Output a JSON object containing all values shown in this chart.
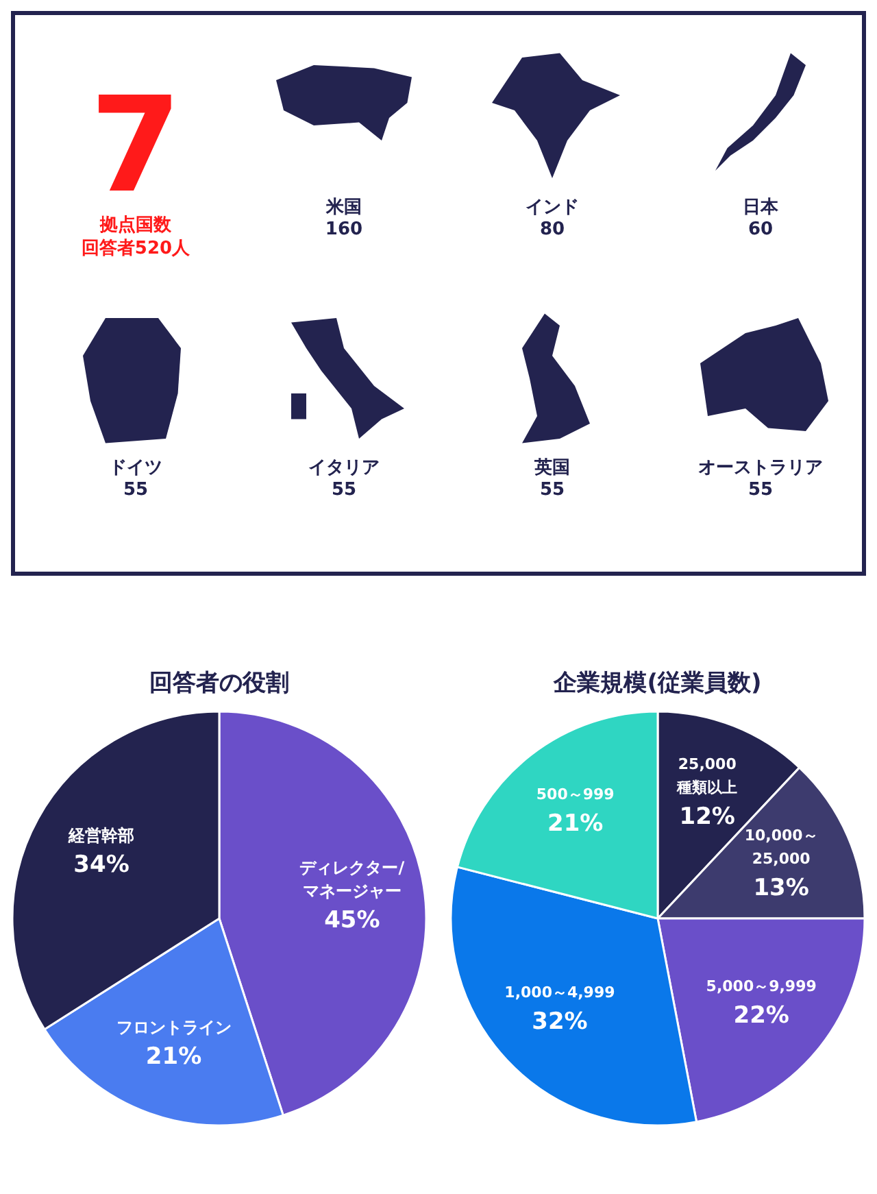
{
  "chart_data": [
    {
      "type": "other",
      "title": "7",
      "annotations": [
        "拠点国数",
        "回答者520人"
      ],
      "categories": [
        "米国",
        "インド",
        "日本",
        "ドイツ",
        "イタリア",
        "英国",
        "オーストラリア"
      ],
      "values": [
        160,
        80,
        60,
        55,
        55,
        55,
        55
      ],
      "data_labels": true
    },
    {
      "type": "pie",
      "title": "回答者の役割",
      "categories": [
        "ディレクター/マネージャー",
        "フロントライン",
        "経営幹部"
      ],
      "values": [
        45,
        21,
        34
      ],
      "value_labels": [
        "45%",
        "21%",
        "34%"
      ],
      "colors": [
        "#6a4fc9",
        "#4a7cf0",
        "#23234f"
      ]
    },
    {
      "type": "pie",
      "title": "企業規模(従業員数)",
      "categories": [
        "25,000種類以上",
        "10,000～25,000",
        "5,000～9,999",
        "1,000～4,999",
        "500～999"
      ],
      "values": [
        12,
        13,
        22,
        32,
        21
      ],
      "value_labels": [
        "12%",
        "13%",
        "22%",
        "32%",
        "21%"
      ],
      "colors": [
        "#23234f",
        "#3d3b6e",
        "#6a4fc9",
        "#0a78ea",
        "#2fd6c2"
      ]
    }
  ]
}
